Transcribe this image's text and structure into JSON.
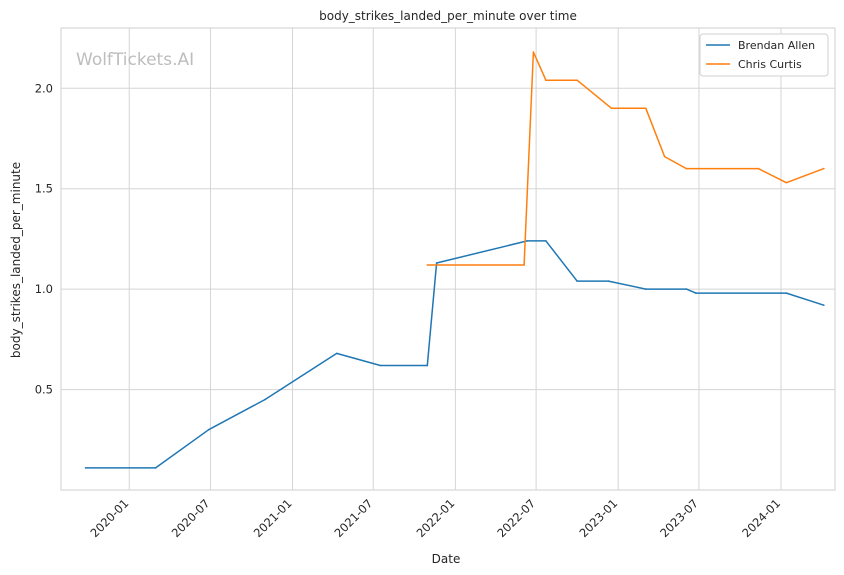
{
  "watermark": "WolfTickets.AI",
  "chart_data": {
    "type": "line",
    "title": "body_strikes_landed_per_minute over time",
    "xlabel": "Date",
    "ylabel": "body_strikes_landed_per_minute",
    "xlim": [
      "2019-08-01",
      "2024-05-01"
    ],
    "ylim": [
      0.0,
      2.3
    ],
    "x_ticks": [
      "2020-01",
      "2020-07",
      "2021-01",
      "2021-07",
      "2022-01",
      "2022-07",
      "2023-01",
      "2023-07",
      "2024-01"
    ],
    "y_ticks": [
      0.5,
      1.0,
      1.5,
      2.0
    ],
    "grid": true,
    "legend_position": "top-right",
    "series": [
      {
        "name": "Brendan Allen",
        "color": "#1f77b4",
        "points": [
          [
            "2019-09-25",
            0.11
          ],
          [
            "2020-02-29",
            0.11
          ],
          [
            "2020-06-27",
            0.3
          ],
          [
            "2020-10-31",
            0.45
          ],
          [
            "2021-04-10",
            0.68
          ],
          [
            "2021-07-17",
            0.62
          ],
          [
            "2021-10-30",
            0.62
          ],
          [
            "2021-11-20",
            1.13
          ],
          [
            "2022-06-11",
            1.24
          ],
          [
            "2022-07-23",
            1.24
          ],
          [
            "2022-10-01",
            1.04
          ],
          [
            "2022-12-10",
            1.04
          ],
          [
            "2023-03-04",
            1.0
          ],
          [
            "2023-06-03",
            1.0
          ],
          [
            "2023-06-24",
            0.98
          ],
          [
            "2024-01-13",
            0.98
          ],
          [
            "2024-04-06",
            0.92
          ]
        ]
      },
      {
        "name": "Chris Curtis",
        "color": "#ff7f0e",
        "points": [
          [
            "2021-10-30",
            1.12
          ],
          [
            "2022-06-04",
            1.12
          ],
          [
            "2022-06-25",
            2.18
          ],
          [
            "2022-07-23",
            2.04
          ],
          [
            "2022-10-01",
            2.04
          ],
          [
            "2022-12-17",
            1.9
          ],
          [
            "2023-03-04",
            1.9
          ],
          [
            "2023-04-15",
            1.66
          ],
          [
            "2023-06-03",
            1.6
          ],
          [
            "2023-11-11",
            1.6
          ],
          [
            "2024-01-13",
            1.53
          ],
          [
            "2024-04-06",
            1.6
          ]
        ]
      }
    ]
  }
}
